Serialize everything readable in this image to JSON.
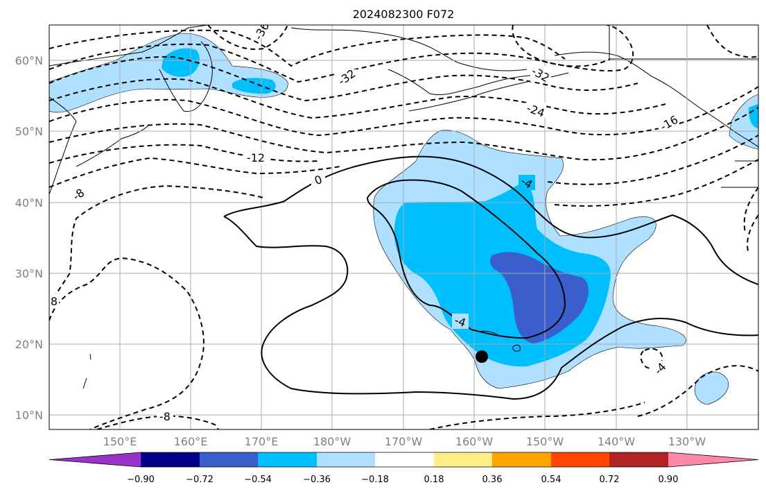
{
  "title": "2024082300 F072",
  "lat_labels": [
    "60°N",
    "50°N",
    "40°N",
    "30°N",
    "20°N",
    "10°N"
  ],
  "lon_labels": [
    "150°E",
    "160°E",
    "170°E",
    "180°W",
    "170°W",
    "160°W",
    "150°W",
    "140°W",
    "130°W"
  ],
  "colorbar": {
    "colors": [
      "#9933cc",
      "#000088",
      "#3a5fcd",
      "#00bfff",
      "#b0e0ff",
      "#ffffff",
      "#ffee88",
      "#ffa500",
      "#ff4500",
      "#b22222",
      "#ff88aa"
    ],
    "tick_labels": [
      "−0.90",
      "−0.72",
      "−0.54",
      "−0.36",
      "−0.18",
      "0.18",
      "0.36",
      "0.54",
      "0.72",
      "0.90"
    ]
  },
  "contour_labels": [
    "-36",
    "-32",
    "-32",
    "-24",
    "-16",
    "-12",
    "-8",
    "0",
    "-4",
    "-4",
    "-4",
    "-8",
    "8"
  ]
}
